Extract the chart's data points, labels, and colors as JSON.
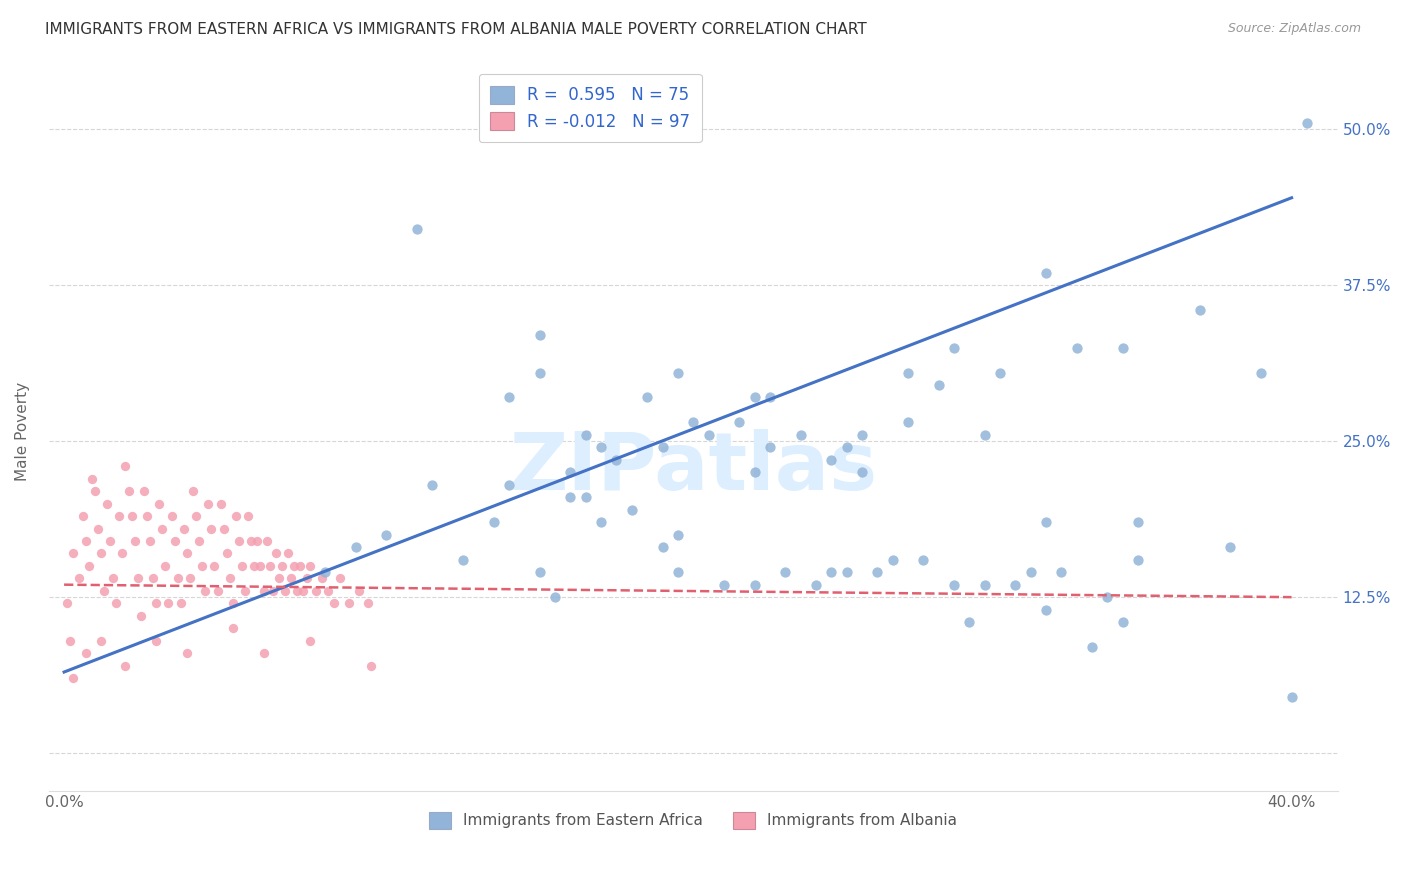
{
  "title": "IMMIGRANTS FROM EASTERN AFRICA VS IMMIGRANTS FROM ALBANIA MALE POVERTY CORRELATION CHART",
  "source": "Source: ZipAtlas.com",
  "ylabel": "Male Poverty",
  "y_ticks": [
    0.0,
    0.125,
    0.25,
    0.375,
    0.5
  ],
  "y_tick_labels_right": [
    "",
    "12.5%",
    "25.0%",
    "37.5%",
    "50.0%"
  ],
  "xlim": [
    -0.005,
    0.415
  ],
  "ylim": [
    -0.03,
    0.545
  ],
  "blue_R": "0.595",
  "blue_N": "75",
  "pink_R": "-0.012",
  "pink_N": "97",
  "blue_color": "#92b4d8",
  "pink_color": "#f4a0b0",
  "blue_line_color": "#4472c4",
  "pink_line_color": "#e06070",
  "watermark": "ZIPatlas",
  "legend_blue_label": "Immigrants from Eastern Africa",
  "legend_pink_label": "Immigrants from Albania",
  "blue_scatter_x": [
    0.085,
    0.095,
    0.105,
    0.115,
    0.13,
    0.14,
    0.145,
    0.155,
    0.155,
    0.16,
    0.165,
    0.165,
    0.17,
    0.175,
    0.18,
    0.185,
    0.19,
    0.195,
    0.195,
    0.2,
    0.205,
    0.21,
    0.215,
    0.22,
    0.225,
    0.225,
    0.23,
    0.235,
    0.24,
    0.245,
    0.25,
    0.255,
    0.255,
    0.26,
    0.265,
    0.27,
    0.275,
    0.28,
    0.285,
    0.29,
    0.295,
    0.3,
    0.305,
    0.31,
    0.315,
    0.32,
    0.325,
    0.33,
    0.335,
    0.34,
    0.345,
    0.35,
    0.155,
    0.175,
    0.2,
    0.225,
    0.25,
    0.275,
    0.3,
    0.32,
    0.345,
    0.37,
    0.39,
    0.405,
    0.12,
    0.145,
    0.17,
    0.2,
    0.23,
    0.26,
    0.29,
    0.32,
    0.35,
    0.38,
    0.4
  ],
  "blue_scatter_y": [
    0.145,
    0.165,
    0.175,
    0.42,
    0.155,
    0.185,
    0.215,
    0.305,
    0.145,
    0.125,
    0.205,
    0.225,
    0.255,
    0.185,
    0.235,
    0.195,
    0.285,
    0.245,
    0.165,
    0.145,
    0.265,
    0.255,
    0.135,
    0.265,
    0.225,
    0.135,
    0.245,
    0.145,
    0.255,
    0.135,
    0.145,
    0.245,
    0.145,
    0.255,
    0.145,
    0.155,
    0.265,
    0.155,
    0.295,
    0.135,
    0.105,
    0.135,
    0.305,
    0.135,
    0.145,
    0.115,
    0.145,
    0.325,
    0.085,
    0.125,
    0.105,
    0.155,
    0.335,
    0.245,
    0.305,
    0.285,
    0.235,
    0.305,
    0.255,
    0.185,
    0.325,
    0.355,
    0.305,
    0.505,
    0.215,
    0.285,
    0.205,
    0.175,
    0.285,
    0.225,
    0.325,
    0.385,
    0.185,
    0.165,
    0.045
  ],
  "pink_scatter_x": [
    0.001,
    0.002,
    0.003,
    0.005,
    0.006,
    0.007,
    0.008,
    0.009,
    0.01,
    0.011,
    0.012,
    0.013,
    0.014,
    0.015,
    0.016,
    0.017,
    0.018,
    0.019,
    0.02,
    0.021,
    0.022,
    0.023,
    0.024,
    0.025,
    0.026,
    0.027,
    0.028,
    0.029,
    0.03,
    0.031,
    0.032,
    0.033,
    0.034,
    0.035,
    0.036,
    0.037,
    0.038,
    0.039,
    0.04,
    0.041,
    0.042,
    0.043,
    0.044,
    0.045,
    0.046,
    0.047,
    0.048,
    0.049,
    0.05,
    0.051,
    0.052,
    0.053,
    0.054,
    0.055,
    0.056,
    0.057,
    0.058,
    0.059,
    0.06,
    0.061,
    0.062,
    0.063,
    0.064,
    0.065,
    0.066,
    0.067,
    0.068,
    0.069,
    0.07,
    0.071,
    0.072,
    0.073,
    0.074,
    0.075,
    0.076,
    0.077,
    0.078,
    0.079,
    0.08,
    0.082,
    0.084,
    0.086,
    0.088,
    0.09,
    0.093,
    0.096,
    0.099,
    0.003,
    0.007,
    0.012,
    0.02,
    0.03,
    0.04,
    0.055,
    0.065,
    0.08,
    0.1
  ],
  "pink_scatter_y": [
    0.12,
    0.09,
    0.16,
    0.14,
    0.19,
    0.17,
    0.15,
    0.22,
    0.21,
    0.18,
    0.16,
    0.13,
    0.2,
    0.17,
    0.14,
    0.12,
    0.19,
    0.16,
    0.23,
    0.21,
    0.19,
    0.17,
    0.14,
    0.11,
    0.21,
    0.19,
    0.17,
    0.14,
    0.12,
    0.2,
    0.18,
    0.15,
    0.12,
    0.19,
    0.17,
    0.14,
    0.12,
    0.18,
    0.16,
    0.14,
    0.21,
    0.19,
    0.17,
    0.15,
    0.13,
    0.2,
    0.18,
    0.15,
    0.13,
    0.2,
    0.18,
    0.16,
    0.14,
    0.12,
    0.19,
    0.17,
    0.15,
    0.13,
    0.19,
    0.17,
    0.15,
    0.17,
    0.15,
    0.13,
    0.17,
    0.15,
    0.13,
    0.16,
    0.14,
    0.15,
    0.13,
    0.16,
    0.14,
    0.15,
    0.13,
    0.15,
    0.13,
    0.14,
    0.15,
    0.13,
    0.14,
    0.13,
    0.12,
    0.14,
    0.12,
    0.13,
    0.12,
    0.06,
    0.08,
    0.09,
    0.07,
    0.09,
    0.08,
    0.1,
    0.08,
    0.09,
    0.07
  ],
  "blue_trend_x": [
    0.0,
    0.4
  ],
  "blue_trend_y": [
    0.065,
    0.445
  ],
  "pink_trend_x": [
    0.0,
    0.4
  ],
  "pink_trend_y": [
    0.135,
    0.125
  ]
}
